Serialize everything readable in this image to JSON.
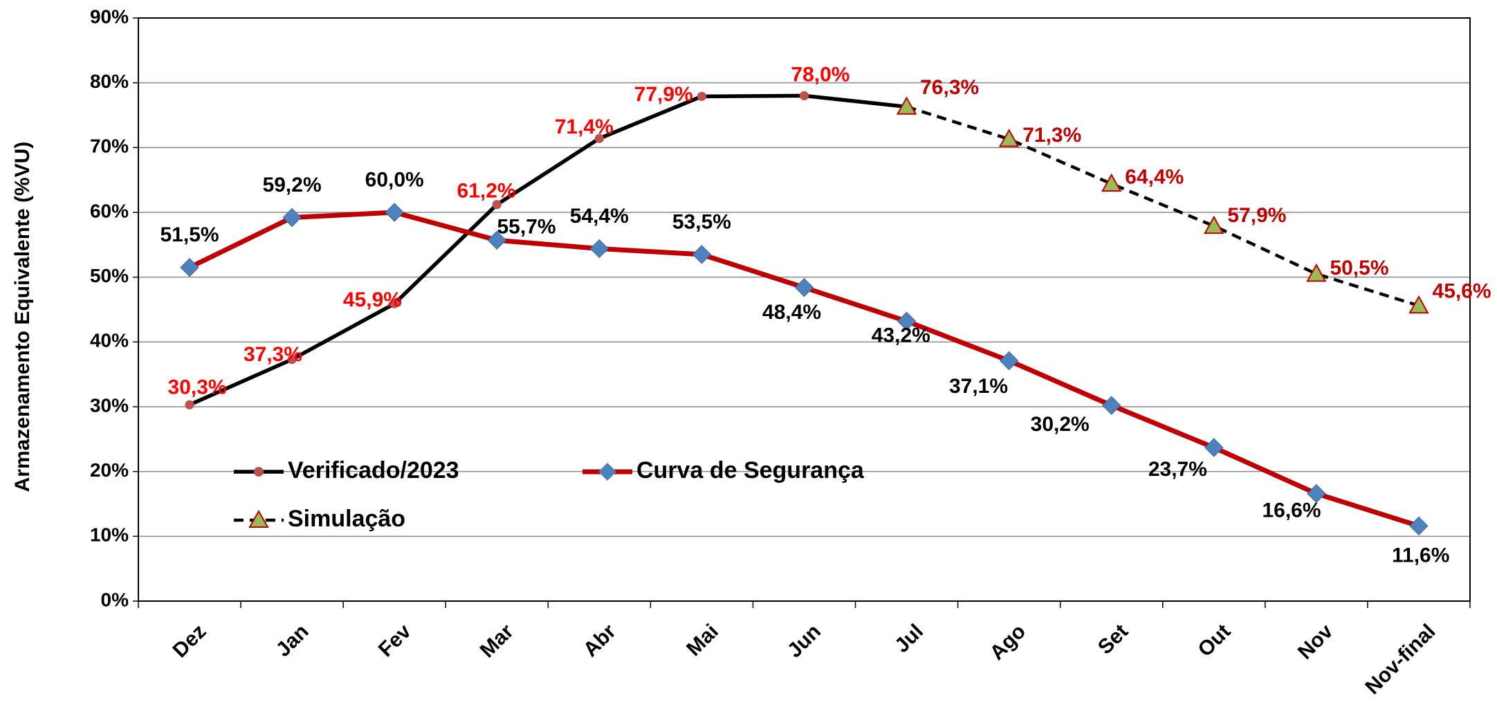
{
  "chart_data": {
    "type": "line",
    "y_label": "Armazenamento Equivalente (%VU)",
    "categories": [
      "Dez",
      "Jan",
      "Fev",
      "Mar",
      "Abr",
      "Mai",
      "Jun",
      "Jul",
      "Ago",
      "Set",
      "Out",
      "Nov",
      "Nov-final"
    ],
    "series": [
      {
        "name": "Verificado/2023",
        "color": "#000000",
        "marker": "circle",
        "marker_color": "#c0504d",
        "dash": false,
        "label_color": "#ff0000",
        "values": [
          30.3,
          37.3,
          45.9,
          61.2,
          71.4,
          77.9,
          78.0,
          76.3,
          null,
          null,
          null,
          null,
          null
        ],
        "value_labels": [
          "30,3%",
          "37,3%",
          "45,9%",
          "61,2%",
          "71,4%",
          "77,9%",
          "78,0%",
          null,
          null,
          null,
          null,
          null,
          null
        ]
      },
      {
        "name": "Curva de Segurança",
        "color": "#c00000",
        "marker": "diamond",
        "marker_color": "#4f81bd",
        "dash": false,
        "label_color": "#000000",
        "values": [
          51.5,
          59.2,
          60.0,
          55.7,
          54.4,
          53.5,
          48.4,
          43.2,
          37.1,
          30.2,
          23.7,
          16.6,
          11.6
        ],
        "value_labels": [
          "51,5%",
          "59,2%",
          "60,0%",
          "55,7%",
          "54,4%",
          "53,5%",
          "48,4%",
          "43,2%",
          "37,1%",
          "30,2%",
          "23,7%",
          "16,6%",
          "11,6%"
        ]
      },
      {
        "name": "Simulação",
        "color": "#000000",
        "marker": "triangle",
        "marker_color": "#9bbb59",
        "dash": true,
        "label_color": "#c00000",
        "values": [
          null,
          null,
          null,
          null,
          null,
          null,
          null,
          76.3,
          71.3,
          64.4,
          57.9,
          50.5,
          45.6
        ],
        "value_labels": [
          null,
          null,
          null,
          null,
          null,
          null,
          null,
          "76,3%",
          "71,3%",
          "64,4%",
          "57,9%",
          "50,5%",
          "45,6%"
        ]
      }
    ],
    "ylim": [
      0,
      90
    ],
    "yticks": [
      {
        "value": 0,
        "label": "0%"
      },
      {
        "value": 10,
        "label": "10%"
      },
      {
        "value": 20,
        "label": "20%"
      },
      {
        "value": 30,
        "label": "30%"
      },
      {
        "value": 40,
        "label": "40%"
      },
      {
        "value": 50,
        "label": "50%"
      },
      {
        "value": 60,
        "label": "60%"
      },
      {
        "value": 70,
        "label": "70%"
      },
      {
        "value": 80,
        "label": "80%"
      },
      {
        "value": 90,
        "label": "90%"
      }
    ],
    "grid": true
  }
}
